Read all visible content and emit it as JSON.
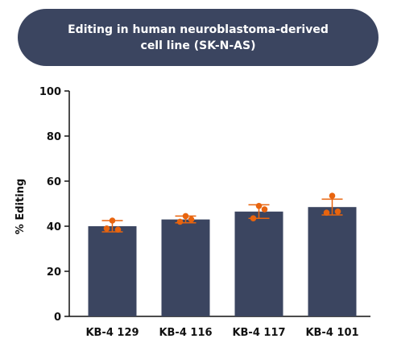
{
  "header": {
    "title_line1": "Editing in human neuroblastoma-derived",
    "title_line2": "cell line (SK-N-AS)"
  },
  "chart_data": {
    "type": "bar",
    "title": "Editing in human neuroblastoma-derived cell line (SK-N-AS)",
    "xlabel": "",
    "ylabel": "% Editing",
    "ylim": [
      0,
      100
    ],
    "yticks": [
      0,
      20,
      40,
      60,
      80,
      100
    ],
    "grid": false,
    "categories": [
      "KB-4 129",
      "KB-4 116",
      "KB-4 117",
      "KB-4 101"
    ],
    "values": [
      40,
      43,
      46.5,
      48.5
    ],
    "error": [
      2.5,
      1.5,
      3,
      3.5
    ],
    "points": [
      [
        42.5,
        39,
        38.5
      ],
      [
        44.5,
        42,
        43
      ],
      [
        49,
        43.5,
        47.5
      ],
      [
        53.5,
        46,
        46.5
      ]
    ],
    "colors": {
      "bar": "#3b4560",
      "points": "#e8640e",
      "axis": "#111111"
    }
  }
}
